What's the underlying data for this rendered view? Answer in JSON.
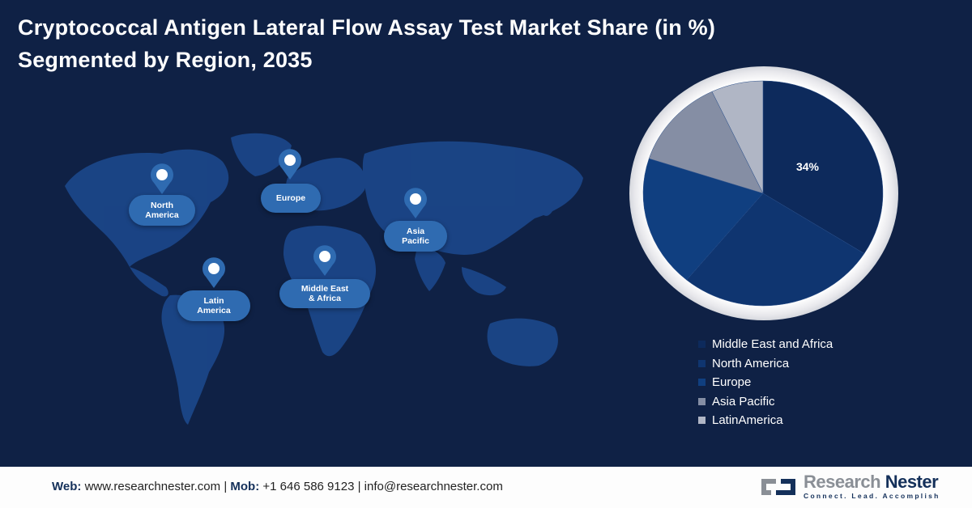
{
  "title": {
    "line1": "Cryptococcal Antigen Lateral Flow Assay Test Market Share (in %)",
    "line2": "Segmented by Region, 2035"
  },
  "map": {
    "regions": [
      {
        "label_line1": "North",
        "label_line2": "America"
      },
      {
        "label_line1": "Europe",
        "label_line2": ""
      },
      {
        "label_line1": "Asia",
        "label_line2": "Pacific"
      },
      {
        "label_line1": "Latin",
        "label_line2": "America"
      },
      {
        "label_line1": "Middle East",
        "label_line2": "& Africa"
      }
    ],
    "icon": "location-pin-icon"
  },
  "chart_data": {
    "type": "pie",
    "title": "Cryptococcal Antigen Lateral Flow Assay Test Market Share (in %) Segmented by Region, 2035",
    "categories": [
      "Middle East and Africa",
      "North America",
      "Europe",
      "Asia Pacific",
      "LatinAmerica"
    ],
    "values": [
      34,
      27,
      19,
      13,
      7
    ],
    "colors": [
      "#0d2a5c",
      "#0f3570",
      "#103f80",
      "#858ea4",
      "#b0b6c5"
    ],
    "data_labels": [
      {
        "category": "Middle East and Africa",
        "text": "34%"
      }
    ],
    "legend_position": "bottom-right",
    "start_angle": "12 o'clock, clockwise"
  },
  "legend": {
    "items": [
      {
        "label": "Middle East and Africa",
        "color": "#0d2a5c"
      },
      {
        "label": "North America",
        "color": "#0f3570"
      },
      {
        "label": "Europe",
        "color": "#103f80"
      },
      {
        "label": "Asia Pacific",
        "color": "#858ea4"
      },
      {
        "label": "LatinAmerica",
        "color": "#b0b6c5"
      }
    ]
  },
  "footer": {
    "web_label": "Web:",
    "web_value": "www.researchnester.com",
    "sep1": "|",
    "mob_label": "Mob:",
    "mob_value": "+1 646 586 9123",
    "sep2": "|",
    "email": "info@researchnester.com",
    "logo_name_part1": "Research",
    "logo_name_part2": "Nester",
    "logo_tagline": "Connect. Lead. Accomplish"
  }
}
